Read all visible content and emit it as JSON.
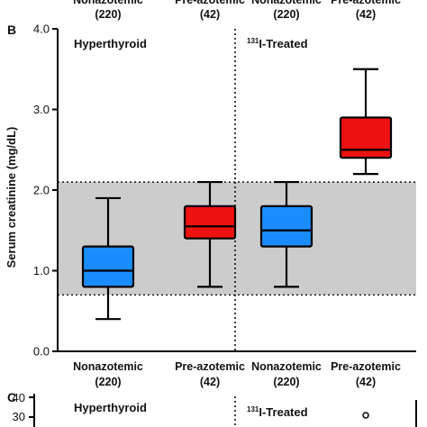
{
  "chart_data": [
    {
      "type": "box",
      "panel_label": "B",
      "ylabel": "Serum creatinine (mg/dL)",
      "ylim": [
        0.0,
        4.0
      ],
      "yticks": [
        "0.0",
        "1.0",
        "2.0",
        "3.0",
        "4.0"
      ],
      "reference_range": [
        0.7,
        2.1
      ],
      "groups": [
        {
          "label": "Hyperthyroid"
        },
        {
          "label_sup": "131",
          "label": "I-Treated"
        }
      ],
      "top_labels": [
        {
          "name": "Nonazotemic",
          "n": "(220)"
        },
        {
          "name": "Pre-azotemic",
          "n": "(42)"
        },
        {
          "name": "Nonazotemic",
          "n": "(220)"
        },
        {
          "name": "Pre-azotemic",
          "n": "(42)"
        }
      ],
      "boxes": [
        {
          "name": "Nonazotemic",
          "n": "(220)",
          "color": "#1a8cff",
          "min": 0.4,
          "q1": 0.8,
          "median": 1.0,
          "q3": 1.3,
          "max": 1.9
        },
        {
          "name": "Pre-azotemic",
          "n": "(42)",
          "color": "#ee1111",
          "min": 0.8,
          "q1": 1.4,
          "median": 1.55,
          "q3": 1.8,
          "max": 2.1
        },
        {
          "name": "Nonazotemic",
          "n": "(220)",
          "color": "#1a8cff",
          "min": 0.8,
          "q1": 1.3,
          "median": 1.5,
          "q3": 1.8,
          "max": 2.1
        },
        {
          "name": "Pre-azotemic",
          "n": "(42)",
          "color": "#ee1111",
          "min": 2.2,
          "q1": 2.4,
          "median": 2.5,
          "q3": 2.9,
          "max": 3.5
        }
      ]
    },
    {
      "type": "box",
      "panel_label": "C",
      "yticks": [
        "30",
        "40"
      ],
      "groups": [
        {
          "label": "Hyperthyroid"
        },
        {
          "label_sup": "131",
          "label": "I-Treated"
        }
      ]
    }
  ],
  "colors": {
    "reference_band": "#cccccc",
    "nonazotemic": "#1a8cff",
    "pre_azotemic": "#ee1111"
  }
}
